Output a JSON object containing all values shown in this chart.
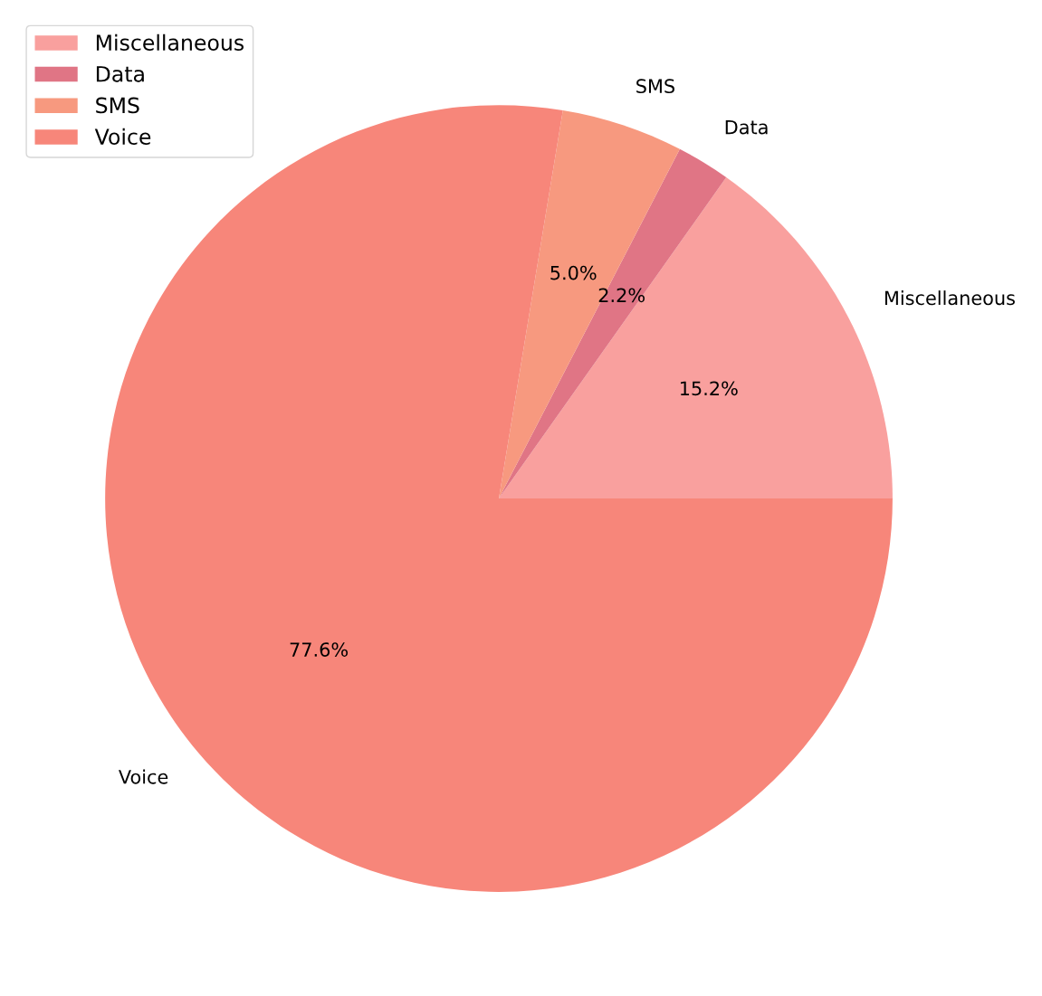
{
  "chart_data": {
    "type": "pie",
    "categories": [
      "Miscellaneous",
      "Data",
      "SMS",
      "Voice"
    ],
    "values": [
      15.2,
      2.2,
      5.0,
      77.6
    ],
    "value_labels": [
      "15.2%",
      "2.2%",
      "5.0%",
      "77.6%"
    ],
    "colors": [
      "#f9a09e",
      "#e07585",
      "#f7997f",
      "#f7867a"
    ],
    "legend": "top left"
  }
}
